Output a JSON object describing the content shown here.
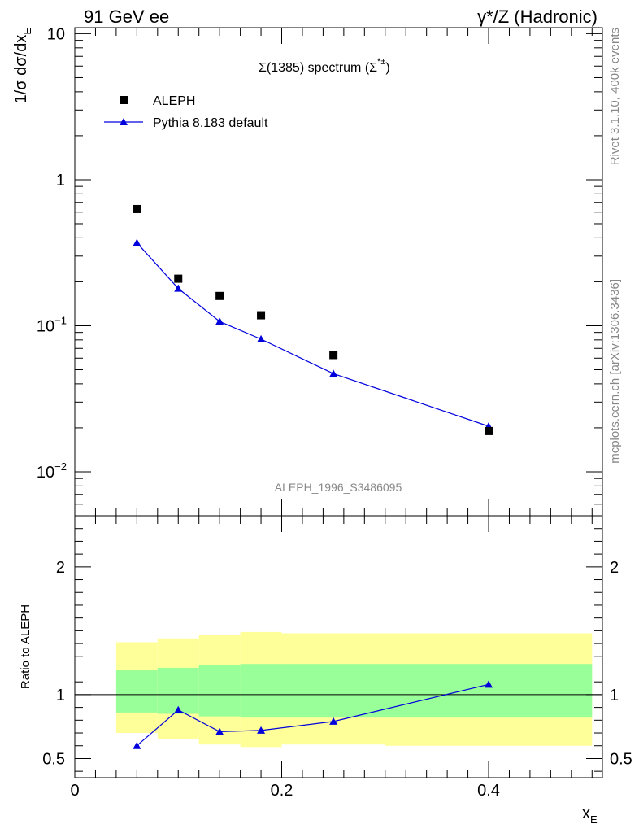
{
  "header": {
    "left": "91 GeV ee",
    "right": "γ*/Z (Hadronic)"
  },
  "side_labels": {
    "rivet": "Rivet 3.1.10,  400k events",
    "source": "mcplots.cern.ch [arXiv:1306.3436]"
  },
  "colors": {
    "data": "#000000",
    "mc": "#0000dd",
    "band_inner": "#99ff99",
    "band_outer": "#ffff99"
  },
  "chart_data": [
    {
      "id": "main",
      "type": "scatter",
      "title": "Σ(1385) spectrum (Σ*±)",
      "title_main": "Σ(1385) spectrum (Σ",
      "title_sup": "*±",
      "title_close": ")",
      "analysis": "ALEPH_1996_S3486095",
      "ylabel": "1/σ dσ/dx",
      "ylabel_sub": "E",
      "yscale": "log",
      "ylim": [
        0.005,
        11
      ],
      "xlim": [
        0,
        0.51
      ],
      "y_ticks": [
        {
          "value": 0.01,
          "base": "10",
          "exp": "−2"
        },
        {
          "value": 0.1,
          "base": "10",
          "exp": "−1"
        },
        {
          "value": 1,
          "base": "1",
          "exp": ""
        },
        {
          "value": 10,
          "base": "10",
          "exp": ""
        }
      ],
      "legend": [
        {
          "name": "ALEPH",
          "marker": "square"
        },
        {
          "name": "Pythia 8.183 default",
          "marker": "triangle-line"
        }
      ],
      "series": [
        {
          "name": "ALEPH",
          "x": [
            0.06,
            0.1,
            0.14,
            0.18,
            0.25,
            0.4
          ],
          "y": [
            0.63,
            0.21,
            0.16,
            0.118,
            0.063,
            0.019
          ]
        },
        {
          "name": "Pythia 8.183 default",
          "x": [
            0.06,
            0.1,
            0.14,
            0.18,
            0.25,
            0.4
          ],
          "y": [
            0.37,
            0.18,
            0.107,
            0.081,
            0.047,
            0.0205
          ]
        }
      ]
    },
    {
      "id": "ratio",
      "type": "line",
      "ylabel": "Ratio to ALEPH",
      "xlabel": "x",
      "xlabel_sub": "E",
      "xlim": [
        0,
        0.51
      ],
      "ylim": [
        0.35,
        2.4
      ],
      "x_ticks": [
        {
          "value": 0,
          "label": "0"
        },
        {
          "value": 0.2,
          "label": "0.2"
        },
        {
          "value": 0.4,
          "label": "0.4"
        }
      ],
      "y_ticks": [
        {
          "value": 0.5,
          "label": "0.5"
        },
        {
          "value": 1,
          "label": "1"
        },
        {
          "value": 2,
          "label": "2"
        }
      ],
      "reference_line": 1,
      "bands": [
        {
          "x0": 0.04,
          "x1": 0.08,
          "outer": [
            0.7,
            1.41
          ],
          "inner": [
            0.86,
            1.19
          ]
        },
        {
          "x0": 0.08,
          "x1": 0.12,
          "outer": [
            0.65,
            1.44
          ],
          "inner": [
            0.85,
            1.21
          ]
        },
        {
          "x0": 0.12,
          "x1": 0.16,
          "outer": [
            0.61,
            1.47
          ],
          "inner": [
            0.83,
            1.23
          ]
        },
        {
          "x0": 0.16,
          "x1": 0.2,
          "outer": [
            0.59,
            1.49
          ],
          "inner": [
            0.82,
            1.24
          ]
        },
        {
          "x0": 0.2,
          "x1": 0.3,
          "outer": [
            0.61,
            1.48
          ],
          "inner": [
            0.82,
            1.24
          ]
        },
        {
          "x0": 0.3,
          "x1": 0.5,
          "outer": [
            0.6,
            1.48
          ],
          "inner": [
            0.82,
            1.24
          ]
        }
      ],
      "series": [
        {
          "name": "Pythia 8.183 default / ALEPH",
          "x": [
            0.06,
            0.1,
            0.14,
            0.18,
            0.25,
            0.4
          ],
          "y": [
            0.6,
            0.88,
            0.71,
            0.72,
            0.79,
            1.08
          ],
          "err": [
            0.0,
            0.0,
            0.015,
            0.02,
            0.0,
            0.02
          ]
        }
      ]
    }
  ]
}
